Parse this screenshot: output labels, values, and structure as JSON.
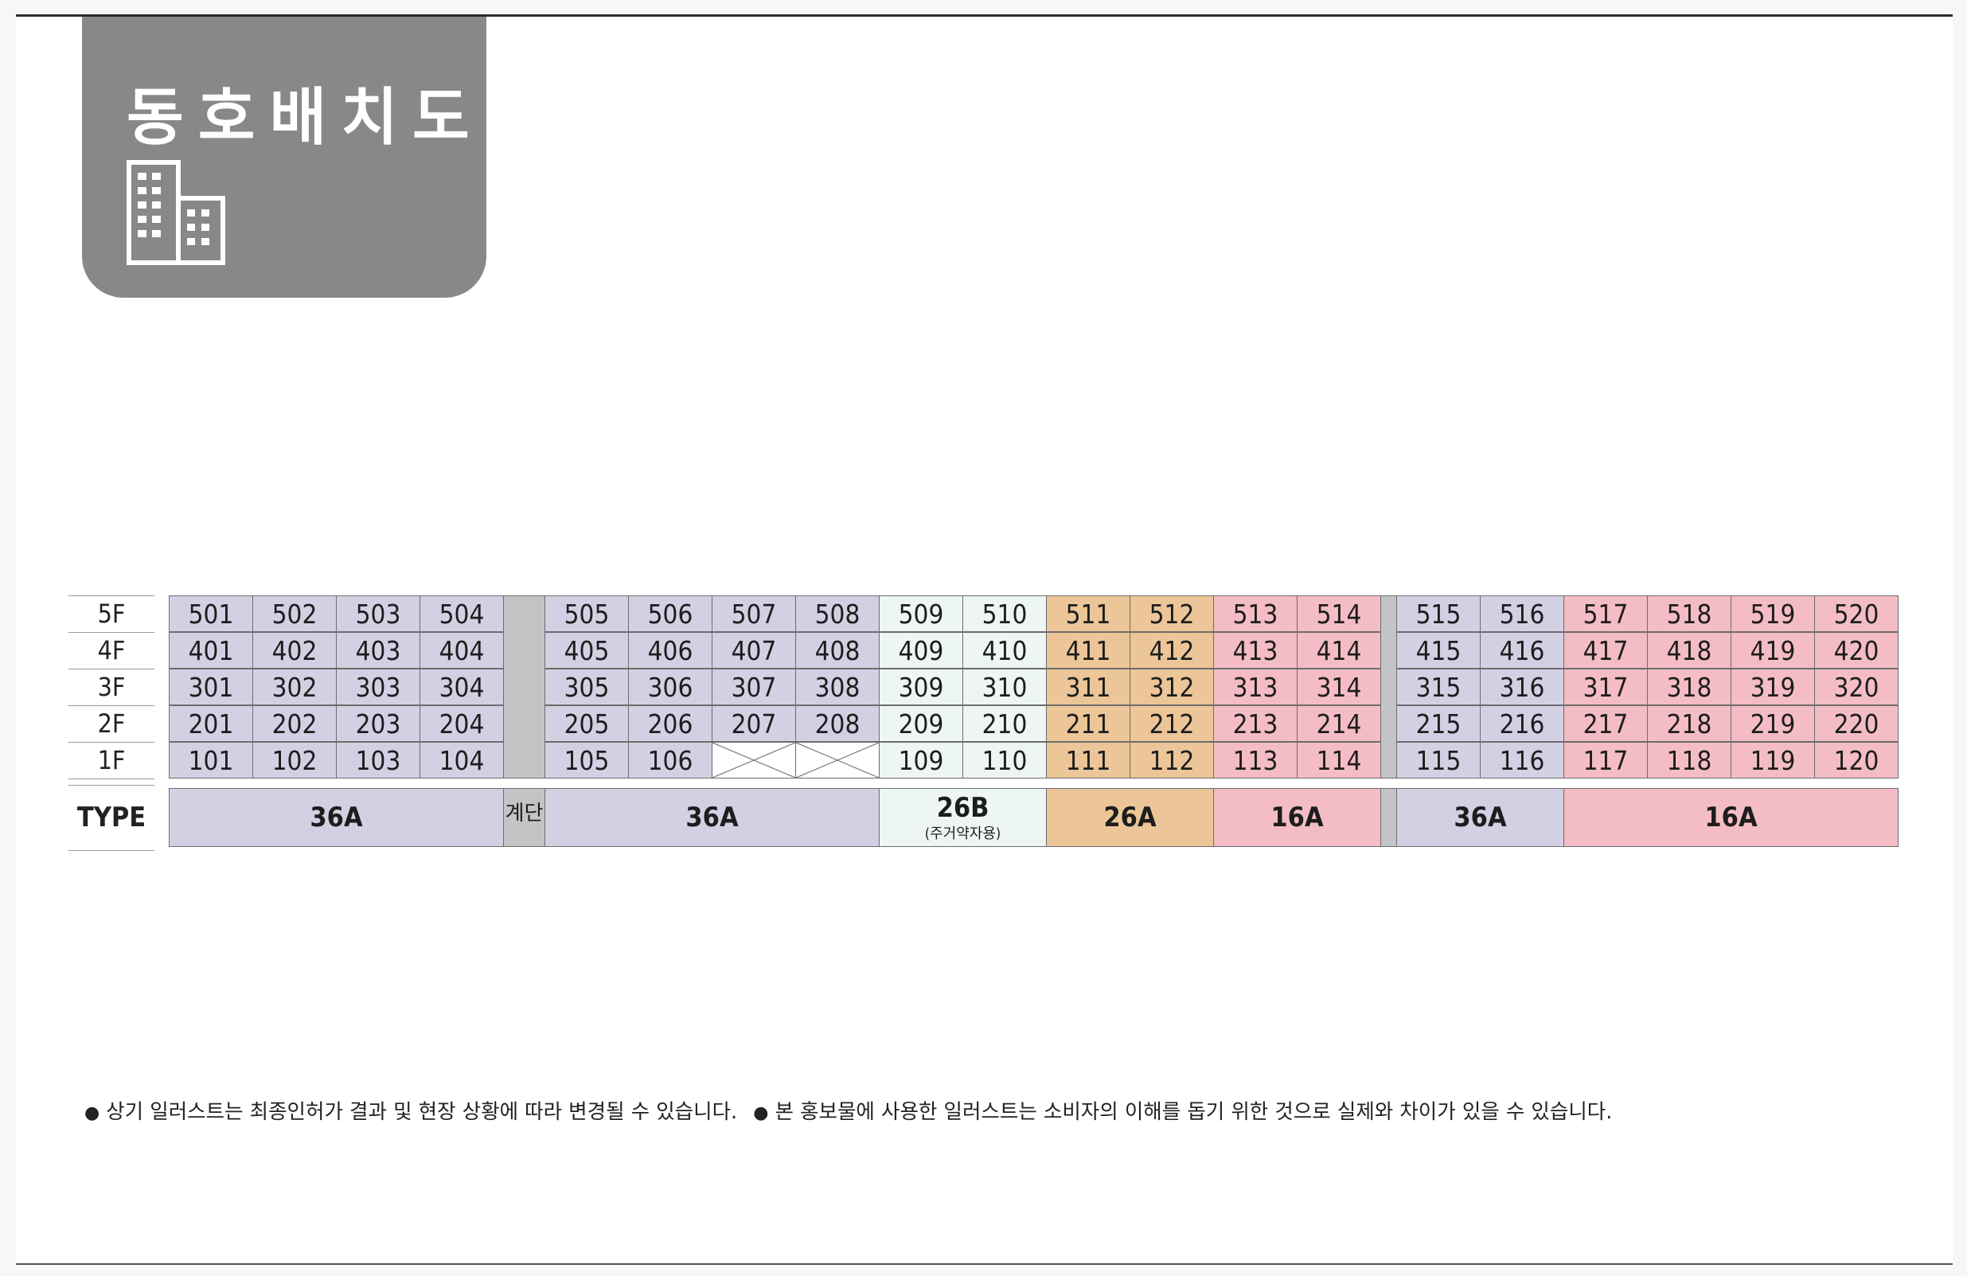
{
  "title": "동호배치도",
  "icon": "building-icon",
  "floors": [
    "5F",
    "4F",
    "3F",
    "2F",
    "1F"
  ],
  "type_label": "TYPE",
  "colors": {
    "36A": "#d4d0e4",
    "26B": "#eef6f3",
    "26A": "#ecc698",
    "16A": "#f4bdc5",
    "stair": "#c3c4c6",
    "tab": "#888888"
  },
  "units": {
    "5F": [
      "501",
      "502",
      "503",
      "504",
      "505",
      "506",
      "507",
      "508",
      "509",
      "510",
      "511",
      "512",
      "513",
      "514",
      "515",
      "516",
      "517",
      "518",
      "519",
      "520"
    ],
    "4F": [
      "401",
      "402",
      "403",
      "404",
      "405",
      "406",
      "407",
      "408",
      "409",
      "410",
      "411",
      "412",
      "413",
      "414",
      "415",
      "416",
      "417",
      "418",
      "419",
      "420"
    ],
    "3F": [
      "301",
      "302",
      "303",
      "304",
      "305",
      "306",
      "307",
      "308",
      "309",
      "310",
      "311",
      "312",
      "313",
      "314",
      "315",
      "316",
      "317",
      "318",
      "319",
      "320"
    ],
    "2F": [
      "201",
      "202",
      "203",
      "204",
      "205",
      "206",
      "207",
      "208",
      "209",
      "210",
      "211",
      "212",
      "213",
      "214",
      "215",
      "216",
      "217",
      "218",
      "219",
      "220"
    ],
    "1F": [
      "101",
      "102",
      "103",
      "104",
      "105",
      "106",
      "",
      "",
      "109",
      "110",
      "111",
      "112",
      "113",
      "114",
      "115",
      "116",
      "117",
      "118",
      "119",
      "120"
    ]
  },
  "unit_types": [
    "36A",
    "36A",
    "36A",
    "36A",
    "36A",
    "36A",
    "36A",
    "36A",
    "26B",
    "26B",
    "26A",
    "26A",
    "16A",
    "16A",
    "36A",
    "36A",
    "16A",
    "16A",
    "16A",
    "16A"
  ],
  "types": [
    {
      "label": "36A",
      "sub": "",
      "kind": "36A"
    },
    {
      "label": "계단",
      "sub": "",
      "kind": "stair"
    },
    {
      "label": "36A",
      "sub": "",
      "kind": "36A"
    },
    {
      "label": "26B",
      "sub": "(주거약자용)",
      "kind": "26B"
    },
    {
      "label": "26A",
      "sub": "",
      "kind": "26A"
    },
    {
      "label": "16A",
      "sub": "",
      "kind": "16A"
    },
    {
      "label": "",
      "sub": "",
      "kind": "stair"
    },
    {
      "label": "36A",
      "sub": "",
      "kind": "36A"
    },
    {
      "label": "16A",
      "sub": "",
      "kind": "16A"
    }
  ],
  "notes": [
    "상기 일러스트는 최종인허가 결과 및 현장 상황에 따라 변경될 수 있습니다.",
    "본 홍보물에 사용한 일러스트는 소비자의 이해를 돕기 위한 것으로 실제와 차이가 있을 수 있습니다."
  ],
  "bullet": "●"
}
